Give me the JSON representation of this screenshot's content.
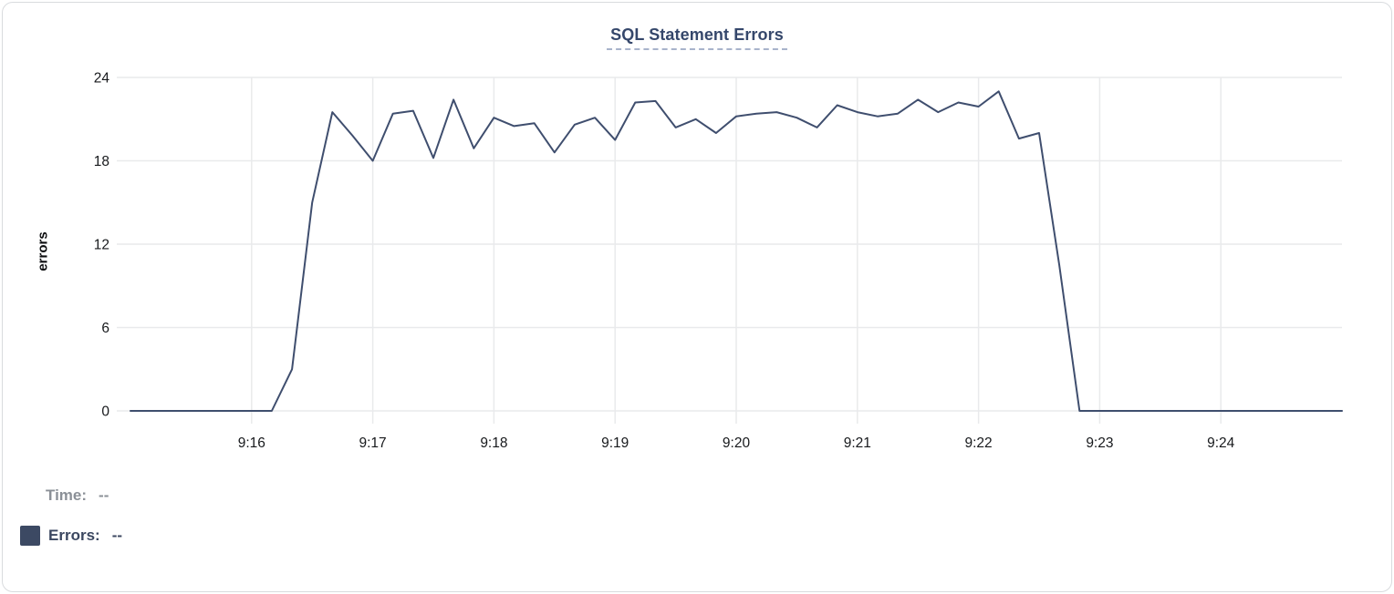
{
  "chart_data": {
    "type": "line",
    "title": "SQL Statement Errors",
    "xlabel": "",
    "ylabel": "errors",
    "ylim": [
      0,
      24
    ],
    "y_ticks": [
      24,
      18,
      12,
      6,
      0
    ],
    "x_ticks": [
      "9:16",
      "9:17",
      "9:18",
      "9:19",
      "9:20",
      "9:21",
      "9:22",
      "9:23",
      "9:24"
    ],
    "x_domain": [
      "9:15:00",
      "9:25:00"
    ],
    "grid": true,
    "legend_position": "bottom-left",
    "series": [
      {
        "name": "Errors",
        "color": "#3f4e6e",
        "points": [
          [
            "9:15:00",
            0
          ],
          [
            "9:15:10",
            0
          ],
          [
            "9:15:20",
            0
          ],
          [
            "9:15:30",
            0
          ],
          [
            "9:15:40",
            0
          ],
          [
            "9:15:50",
            0
          ],
          [
            "9:16:00",
            0
          ],
          [
            "9:16:10",
            0
          ],
          [
            "9:16:20",
            3
          ],
          [
            "9:16:30",
            15
          ],
          [
            "9:16:40",
            21.5
          ],
          [
            "9:16:50",
            19.8
          ],
          [
            "9:17:00",
            18
          ],
          [
            "9:17:10",
            21.4
          ],
          [
            "9:17:20",
            21.6
          ],
          [
            "9:17:30",
            18.2
          ],
          [
            "9:17:40",
            22.4
          ],
          [
            "9:17:50",
            18.9
          ],
          [
            "9:18:00",
            21.1
          ],
          [
            "9:18:10",
            20.5
          ],
          [
            "9:18:20",
            20.7
          ],
          [
            "9:18:30",
            18.6
          ],
          [
            "9:18:40",
            20.6
          ],
          [
            "9:18:50",
            21.1
          ],
          [
            "9:19:00",
            19.5
          ],
          [
            "9:19:10",
            22.2
          ],
          [
            "9:19:20",
            22.3
          ],
          [
            "9:19:30",
            20.4
          ],
          [
            "9:19:40",
            21.0
          ],
          [
            "9:19:50",
            20.0
          ],
          [
            "9:20:00",
            21.2
          ],
          [
            "9:20:10",
            21.4
          ],
          [
            "9:20:20",
            21.5
          ],
          [
            "9:20:30",
            21.1
          ],
          [
            "9:20:40",
            20.4
          ],
          [
            "9:20:50",
            22.0
          ],
          [
            "9:21:00",
            21.5
          ],
          [
            "9:21:10",
            21.2
          ],
          [
            "9:21:20",
            21.4
          ],
          [
            "9:21:30",
            22.4
          ],
          [
            "9:21:40",
            21.5
          ],
          [
            "9:21:50",
            22.2
          ],
          [
            "9:22:00",
            21.9
          ],
          [
            "9:22:10",
            23.0
          ],
          [
            "9:22:20",
            19.6
          ],
          [
            "9:22:30",
            20.0
          ],
          [
            "9:22:40",
            10.5
          ],
          [
            "9:22:50",
            0
          ],
          [
            "9:23:00",
            0
          ],
          [
            "9:23:10",
            0
          ],
          [
            "9:23:20",
            0
          ],
          [
            "9:23:30",
            0
          ],
          [
            "9:23:40",
            0
          ],
          [
            "9:23:50",
            0
          ],
          [
            "9:24:00",
            0
          ],
          [
            "9:24:10",
            0
          ],
          [
            "9:24:20",
            0
          ],
          [
            "9:24:30",
            0
          ],
          [
            "9:24:40",
            0
          ],
          [
            "9:24:50",
            0
          ],
          [
            "9:25:00",
            0
          ]
        ]
      }
    ]
  },
  "readout": {
    "time_label": "Time:",
    "time_value": "--",
    "errors_label": "Errors:",
    "errors_value": "--"
  },
  "colors": {
    "title": "#35476b",
    "title_underline": "#a8b3cb",
    "series_line": "#3f4e6e",
    "legend_swatch": "#3c4963",
    "time_text": "#8b9097",
    "errors_text": "#3b4760",
    "grid": "#e9eaec",
    "axis_text": "#17191c",
    "card_border": "#d9dbde"
  }
}
